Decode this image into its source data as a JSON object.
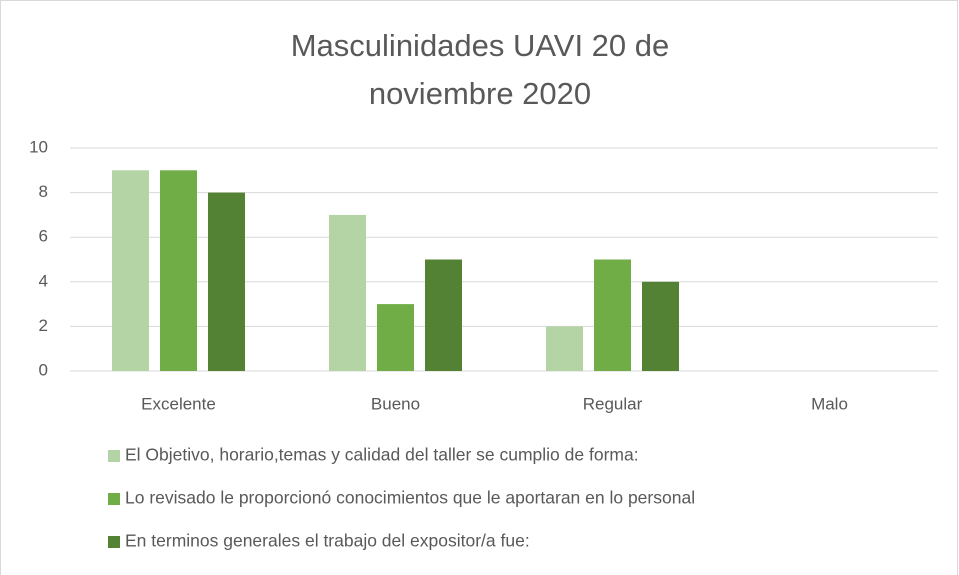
{
  "chart_data": {
    "type": "bar",
    "title": "Masculinidades UAVI 20 de noviembre 2020",
    "categories": [
      "Excelente",
      "Bueno",
      "Regular",
      "Malo"
    ],
    "series": [
      {
        "name": "El Objetivo, horario,temas y calidad del taller se cumplio de forma:",
        "color": "#b5d4a6",
        "values": [
          9,
          7,
          2,
          0
        ]
      },
      {
        "name": "Lo revisado le proporcionó conocimientos que le aportaran en lo personal",
        "color": "#70ad47",
        "values": [
          9,
          3,
          5,
          0
        ]
      },
      {
        "name": "En terminos generales el trabajo del expositor/a fue:",
        "color": "#548235",
        "values": [
          8,
          5,
          4,
          0
        ]
      }
    ],
    "ylim": [
      0,
      10
    ],
    "yticks": [
      0,
      2,
      4,
      6,
      8,
      10
    ],
    "grid": true,
    "legend": "bottom"
  }
}
